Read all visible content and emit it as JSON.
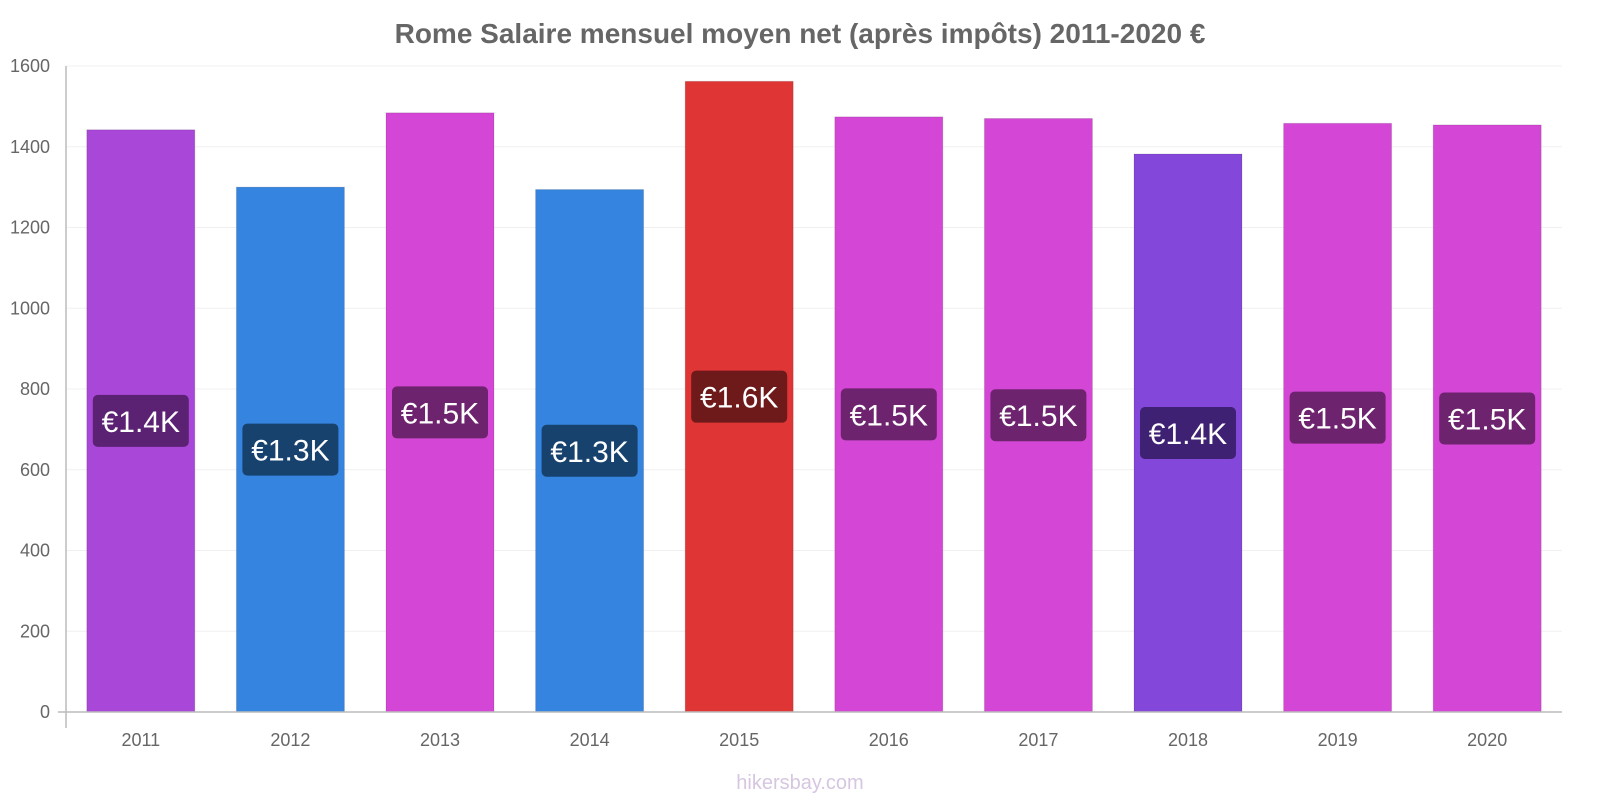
{
  "chart_data": {
    "type": "bar",
    "title": "Rome Salaire mensuel moyen net (après impôts) 2011-2020 €",
    "categories": [
      "2011",
      "2012",
      "2013",
      "2014",
      "2015",
      "2016",
      "2017",
      "2018",
      "2019",
      "2020"
    ],
    "values": [
      1442,
      1300,
      1484,
      1294,
      1562,
      1474,
      1470,
      1382,
      1458,
      1454
    ],
    "labels": [
      "€1.4K",
      "€1.3K",
      "€1.5K",
      "€1.3K",
      "€1.6K",
      "€1.5K",
      "€1.5K",
      "€1.4K",
      "€1.5K",
      "€1.5K"
    ],
    "bar_colors": [
      "#a947d9",
      "#3584e0",
      "#d447d6",
      "#3584e0",
      "#e03535",
      "#d447d6",
      "#d447d6",
      "#8347d9",
      "#d447d6",
      "#d447d6"
    ],
    "label_bg_colors": [
      "#5b2173",
      "#18426e",
      "#6e236e",
      "#18426e",
      "#6e1a1a",
      "#6e236e",
      "#6e236e",
      "#3f2173",
      "#6e236e",
      "#6e236e"
    ],
    "yticks": [
      0,
      200,
      400,
      600,
      800,
      1000,
      1200,
      1400,
      1600
    ],
    "ylim": [
      0,
      1600
    ],
    "xlabel": "",
    "ylabel": "",
    "grid": true,
    "legend": "none"
  },
  "credit": "hikersbay.com"
}
